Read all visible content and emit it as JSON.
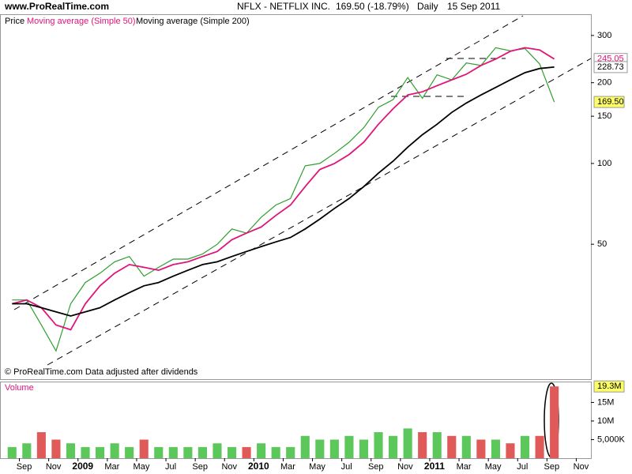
{
  "site": "www.ProRealTime.com",
  "header": {
    "symbol": "NFLX - NETFLIX INC.",
    "quote": "169.50 (-18.79%)",
    "period": "Daily",
    "date": "15 Sep 2011"
  },
  "footer_note": "© ProRealTime.com  Data adjusted after dividends",
  "chart_data": [
    {
      "type": "line",
      "log_scale": true,
      "x": [
        "2008-08",
        "2008-09",
        "2008-10",
        "2008-11",
        "2008-12",
        "2009-01",
        "2009-02",
        "2009-03",
        "2009-04",
        "2009-05",
        "2009-06",
        "2009-07",
        "2009-08",
        "2009-09",
        "2009-10",
        "2009-11",
        "2009-12",
        "2010-01",
        "2010-02",
        "2010-03",
        "2010-04",
        "2010-05",
        "2010-06",
        "2010-07",
        "2010-08",
        "2010-09",
        "2010-10",
        "2010-11",
        "2010-12",
        "2011-01",
        "2011-02",
        "2011-03",
        "2011-04",
        "2011-05",
        "2011-06",
        "2011-07",
        "2011-08",
        "2011-09"
      ],
      "xlim": [
        "2008-08",
        "2011-12"
      ],
      "xticks": [
        {
          "value": "2008-09",
          "label": "Sep"
        },
        {
          "value": "2008-11",
          "label": "Nov"
        },
        {
          "value": "2009-01",
          "label": "2009"
        },
        {
          "value": "2009-03",
          "label": "Mar"
        },
        {
          "value": "2009-05",
          "label": "May"
        },
        {
          "value": "2009-07",
          "label": "Jul"
        },
        {
          "value": "2009-09",
          "label": "Sep"
        },
        {
          "value": "2009-11",
          "label": "Nov"
        },
        {
          "value": "2010-01",
          "label": "2010"
        },
        {
          "value": "2010-03",
          "label": "Mar"
        },
        {
          "value": "2010-05",
          "label": "May"
        },
        {
          "value": "2010-07",
          "label": "Jul"
        },
        {
          "value": "2010-09",
          "label": "Sep"
        },
        {
          "value": "2010-11",
          "label": "Nov"
        },
        {
          "value": "2011-01",
          "label": "2011"
        },
        {
          "value": "2011-03",
          "label": "Mar"
        },
        {
          "value": "2011-05",
          "label": "May"
        },
        {
          "value": "2011-07",
          "label": "Jul"
        },
        {
          "value": "2011-09",
          "label": "Sep"
        },
        {
          "value": "2011-11",
          "label": "Nov"
        }
      ],
      "ylim": [
        15.7,
        360
      ],
      "yticks": [
        50,
        100,
        150,
        200,
        300
      ],
      "series": [
        {
          "name": "Price",
          "color": "#2e9e2e",
          "last_label": "169.50",
          "values": [
            31,
            31,
            25,
            20,
            30,
            36,
            39,
            43,
            45,
            38,
            41,
            44,
            44,
            46,
            50,
            57,
            55,
            63,
            70,
            74,
            98,
            100,
            109,
            120,
            136,
            162,
            173,
            209,
            175,
            214,
            205,
            237,
            232,
            270,
            263,
            268,
            235,
            169.5
          ]
        },
        {
          "name": "Moving average (Simple 50)",
          "color": "#e0157a",
          "values": [
            30,
            31,
            29,
            25,
            24,
            30,
            35,
            39,
            42,
            41,
            40,
            42,
            43,
            45,
            47,
            52,
            55,
            58,
            64,
            70,
            82,
            95,
            100,
            108,
            120,
            140,
            160,
            180,
            185,
            195,
            205,
            215,
            232,
            245,
            262,
            270,
            265,
            245.05
          ]
        },
        {
          "name": "Moving average (Simple 200)",
          "color": "#000000",
          "values": [
            30,
            30,
            29,
            28,
            27,
            28,
            29,
            31,
            33,
            35,
            36,
            38,
            40,
            42,
            43,
            45,
            47,
            49,
            51,
            53,
            57,
            62,
            68,
            74,
            82,
            92,
            102,
            115,
            128,
            140,
            155,
            168,
            180,
            192,
            205,
            218,
            226,
            228.73
          ]
        }
      ]
    },
    {
      "type": "bar",
      "title": "Volume",
      "ylim": [
        0,
        20.4
      ],
      "yticks": [
        {
          "value": 5,
          "label": "5,000K"
        },
        {
          "value": 10,
          "label": "10M"
        },
        {
          "value": 15,
          "label": "15M"
        }
      ],
      "values": [
        3,
        4,
        7,
        5,
        4,
        3,
        3,
        4,
        3,
        5,
        3,
        3,
        3,
        3,
        4,
        3,
        3,
        4,
        3,
        3,
        6,
        5,
        5,
        6,
        5,
        7,
        6,
        8,
        7,
        7,
        6,
        6,
        5,
        5,
        4,
        6,
        6,
        19.3
      ],
      "last_label": "19.3M"
    }
  ]
}
